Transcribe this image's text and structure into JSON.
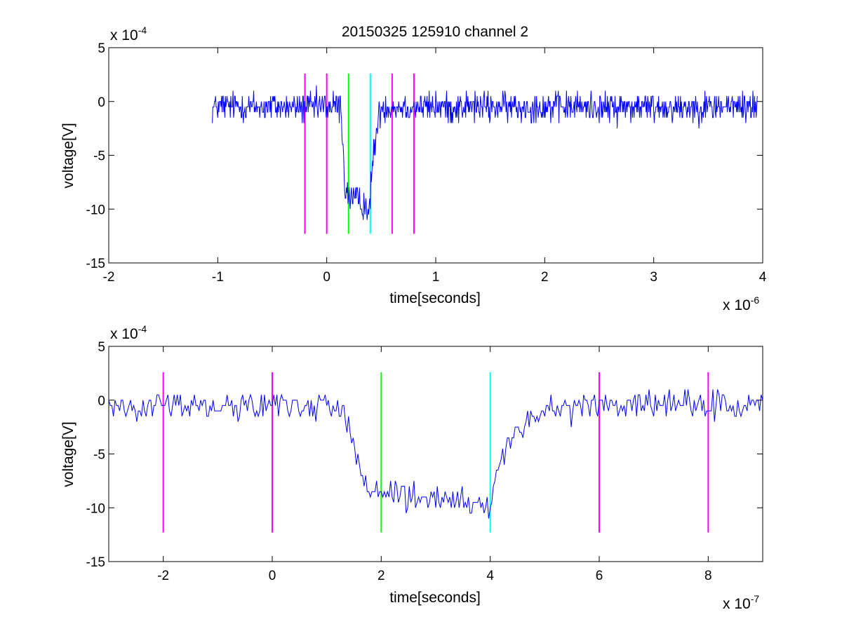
{
  "chart_data": [
    {
      "type": "line",
      "title": "20150325 125910 channel 2",
      "xlabel": "time[seconds]",
      "ylabel": "voltage[V]",
      "x_multiplier": {
        "base": "x 10",
        "exponent": "-6"
      },
      "y_multiplier": {
        "base": "x 10",
        "exponent": "-4"
      },
      "xlim": [
        -2,
        4
      ],
      "ylim": [
        -15,
        5
      ],
      "x_ticks": [
        "-2",
        "-1",
        "0",
        "1",
        "2",
        "3",
        "4"
      ],
      "y_ticks": [
        "5",
        "0",
        "-5",
        "-10",
        "-15"
      ],
      "grid": false,
      "series": [
        {
          "color": "#0000ff",
          "x_range": [
            -1.05,
            3.95
          ],
          "signal": {
            "baseline": -0.5,
            "noise_amplitude": 1.4,
            "drop_start": 0.13,
            "drop_end": 0.17,
            "low_level": -8.5,
            "low_level_end": -10.0,
            "rise_start": 0.4,
            "rise_end": 0.5,
            "samples": 1000
          }
        }
      ],
      "vertical_lines": [
        {
          "x": -0.2,
          "color": "#ff00ff",
          "y_range": [
            -12.3,
            2.6
          ]
        },
        {
          "x": 0.0,
          "color": "#ff00ff",
          "y_range": [
            -12.3,
            2.6
          ]
        },
        {
          "x": 0.2,
          "color": "#00ff00",
          "y_range": [
            -12.3,
            2.6
          ]
        },
        {
          "x": 0.4,
          "color": "#00ffff",
          "y_range": [
            -12.3,
            2.6
          ]
        },
        {
          "x": 0.6,
          "color": "#ff00ff",
          "y_range": [
            -12.3,
            2.6
          ]
        },
        {
          "x": 0.8,
          "color": "#ff00ff",
          "y_range": [
            -12.3,
            2.6
          ]
        }
      ]
    },
    {
      "type": "line",
      "title": "",
      "xlabel": "time[seconds]",
      "ylabel": "voltage[V]",
      "x_multiplier": {
        "base": "x 10",
        "exponent": "-7"
      },
      "y_multiplier": {
        "base": "x 10",
        "exponent": "-4"
      },
      "xlim": [
        -3,
        9
      ],
      "ylim": [
        -15,
        5
      ],
      "x_ticks": [
        "-2",
        "0",
        "2",
        "4",
        "6",
        "8"
      ],
      "y_ticks": [
        "5",
        "0",
        "-5",
        "-10",
        "-15"
      ],
      "grid": false,
      "series": [
        {
          "color": "#0000ff",
          "x_range": [
            -3,
            9
          ],
          "signal": {
            "baseline": -0.5,
            "noise_amplitude": 1.3,
            "drop_start": 1.3,
            "drop_end": 1.7,
            "low_level": -8.5,
            "low_level_end": -10.0,
            "rise_start": 4.0,
            "rise_end": 5.0,
            "samples": 420
          }
        }
      ],
      "vertical_lines": [
        {
          "x": -2,
          "color": "#ff00ff",
          "y_range": [
            -12.3,
            2.6
          ]
        },
        {
          "x": 0,
          "color": "#ff00ff",
          "y_range": [
            -12.3,
            2.6
          ]
        },
        {
          "x": 2,
          "color": "#00ff00",
          "y_range": [
            -12.3,
            2.6
          ]
        },
        {
          "x": 4,
          "color": "#00ffff",
          "y_range": [
            -12.3,
            2.6
          ]
        },
        {
          "x": 6,
          "color": "#ff00ff",
          "y_range": [
            -12.3,
            2.6
          ]
        },
        {
          "x": 8,
          "color": "#ff00ff",
          "y_range": [
            -12.3,
            2.6
          ]
        }
      ]
    }
  ]
}
